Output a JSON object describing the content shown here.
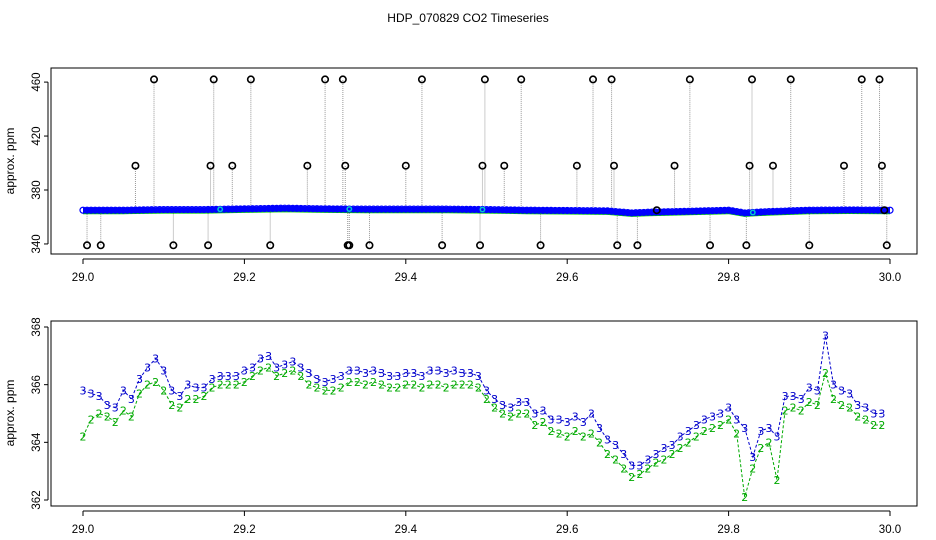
{
  "figure": {
    "title": "HDP_070829  CO2 Timeseries"
  },
  "chart_data": [
    {
      "type": "line",
      "panel": "top",
      "ylabel": "approx. ppm",
      "xlim": [
        29.0,
        30.0
      ],
      "ylim": [
        337,
        466
      ],
      "x_ticks": [
        "29.0",
        "29.2",
        "29.4",
        "29.6",
        "29.8",
        "30.0"
      ],
      "y_ticks": [
        "340",
        "380",
        "420",
        "460"
      ],
      "colors": {
        "series2": "#00cc00",
        "series3": "#0000ff",
        "outlier_marker": "#000000",
        "spike_line": "#999999",
        "highlight": "#00cccc"
      },
      "series": [
        {
          "role": "baseline",
          "x": [
            29.0,
            29.05,
            29.1,
            29.15,
            29.2,
            29.25,
            29.3,
            29.35,
            29.4,
            29.45,
            29.5,
            29.55,
            29.6,
            29.65,
            29.68,
            29.7,
            29.75,
            29.8,
            29.82,
            29.85,
            29.9,
            29.95,
            30.0
          ],
          "y": [
            365,
            365,
            365.5,
            365.5,
            366,
            366.5,
            366,
            365.8,
            365.8,
            365.8,
            365.5,
            365,
            364.8,
            364.5,
            363,
            363.5,
            364.2,
            365,
            363,
            364,
            365,
            365.2,
            365
          ]
        },
        {
          "role": "outliers",
          "x": [
            29.005,
            29.022,
            29.065,
            29.088,
            29.112,
            29.155,
            29.158,
            29.162,
            29.185,
            29.208,
            29.232,
            29.278,
            29.3,
            29.322,
            29.325,
            29.328,
            29.33,
            29.355,
            29.4,
            29.42,
            29.445,
            29.492,
            29.495,
            29.498,
            29.522,
            29.543,
            29.567,
            29.612,
            29.632,
            29.655,
            29.658,
            29.662,
            29.687,
            29.711,
            29.733,
            29.752,
            29.777,
            29.822,
            29.826,
            29.829,
            29.855,
            29.877,
            29.9,
            29.943,
            29.965,
            29.987,
            29.99,
            29.993,
            29.996
          ],
          "y": [
            339,
            339,
            398,
            462,
            339,
            339,
            398,
            462,
            398,
            462,
            339,
            398,
            462,
            462,
            398,
            339,
            339,
            339,
            398,
            462,
            339,
            339,
            398,
            462,
            398,
            462,
            339,
            398,
            462,
            462,
            398,
            339,
            339,
            365,
            398,
            462,
            339,
            339,
            398,
            462,
            398,
            462,
            339,
            398,
            462,
            462,
            398,
            365,
            339
          ]
        }
      ]
    },
    {
      "type": "line",
      "panel": "bottom",
      "ylabel": "approx. ppm",
      "xlim": [
        29.0,
        30.0
      ],
      "ylim": [
        362,
        368
      ],
      "x_ticks": [
        "29.0",
        "29.2",
        "29.4",
        "29.6",
        "29.8",
        "30.0"
      ],
      "y_ticks": [
        "362",
        "364",
        "366",
        "368"
      ],
      "colors": {
        "series2": "#00aa00",
        "series3": "#0000cc"
      },
      "series": [
        {
          "name": "3",
          "x": [
            29.0,
            29.01,
            29.02,
            29.03,
            29.04,
            29.05,
            29.06,
            29.07,
            29.08,
            29.09,
            29.1,
            29.11,
            29.12,
            29.13,
            29.14,
            29.15,
            29.16,
            29.17,
            29.18,
            29.19,
            29.2,
            29.21,
            29.22,
            29.23,
            29.24,
            29.25,
            29.26,
            29.27,
            29.28,
            29.29,
            29.3,
            29.31,
            29.32,
            29.33,
            29.34,
            29.35,
            29.36,
            29.37,
            29.38,
            29.39,
            29.4,
            29.41,
            29.42,
            29.43,
            29.44,
            29.45,
            29.46,
            29.47,
            29.48,
            29.49,
            29.5,
            29.51,
            29.52,
            29.53,
            29.54,
            29.55,
            29.56,
            29.57,
            29.58,
            29.59,
            29.6,
            29.61,
            29.62,
            29.63,
            29.64,
            29.65,
            29.66,
            29.67,
            29.68,
            29.69,
            29.7,
            29.71,
            29.72,
            29.73,
            29.74,
            29.75,
            29.76,
            29.77,
            29.78,
            29.79,
            29.8,
            29.81,
            29.82,
            29.83,
            29.84,
            29.85,
            29.86,
            29.87,
            29.88,
            29.89,
            29.9,
            29.91,
            29.92,
            29.93,
            29.94,
            29.95,
            29.96,
            29.97,
            29.98,
            29.99
          ],
          "y": [
            365.8,
            365.7,
            365.6,
            365.3,
            365.2,
            365.8,
            365.5,
            366.2,
            366.6,
            366.9,
            366.5,
            365.8,
            365.6,
            366.0,
            365.9,
            365.9,
            366.2,
            366.3,
            366.3,
            366.3,
            366.5,
            366.6,
            366.9,
            367.0,
            366.6,
            366.7,
            366.8,
            366.6,
            366.4,
            366.2,
            366.1,
            366.2,
            366.3,
            366.5,
            366.5,
            366.4,
            366.5,
            366.4,
            366.3,
            366.3,
            366.4,
            366.4,
            366.3,
            366.5,
            366.5,
            366.4,
            366.5,
            366.4,
            366.4,
            366.3,
            365.8,
            365.5,
            365.3,
            365.2,
            365.4,
            365.4,
            365.0,
            365.1,
            364.8,
            364.8,
            364.7,
            364.9,
            364.7,
            365.0,
            364.5,
            364.1,
            363.9,
            363.6,
            363.2,
            363.2,
            363.4,
            363.6,
            363.8,
            363.9,
            364.2,
            364.4,
            364.6,
            364.8,
            364.9,
            365.0,
            365.2,
            364.8,
            364.5,
            363.5,
            364.4,
            364.5,
            364.2,
            365.6,
            365.6,
            365.5,
            365.9,
            365.8,
            367.7,
            366.0,
            365.8,
            365.7,
            365.3,
            365.2,
            365.0,
            365.0
          ]
        },
        {
          "name": "2",
          "x": [
            29.0,
            29.01,
            29.02,
            29.03,
            29.04,
            29.05,
            29.06,
            29.07,
            29.08,
            29.09,
            29.1,
            29.11,
            29.12,
            29.13,
            29.14,
            29.15,
            29.16,
            29.17,
            29.18,
            29.19,
            29.2,
            29.21,
            29.22,
            29.23,
            29.24,
            29.25,
            29.26,
            29.27,
            29.28,
            29.29,
            29.3,
            29.31,
            29.32,
            29.33,
            29.34,
            29.35,
            29.36,
            29.37,
            29.38,
            29.39,
            29.4,
            29.41,
            29.42,
            29.43,
            29.44,
            29.45,
            29.46,
            29.47,
            29.48,
            29.49,
            29.5,
            29.51,
            29.52,
            29.53,
            29.54,
            29.55,
            29.56,
            29.57,
            29.58,
            29.59,
            29.6,
            29.61,
            29.62,
            29.63,
            29.64,
            29.65,
            29.66,
            29.67,
            29.68,
            29.69,
            29.7,
            29.71,
            29.72,
            29.73,
            29.74,
            29.75,
            29.76,
            29.77,
            29.78,
            29.79,
            29.8,
            29.81,
            29.82,
            29.83,
            29.84,
            29.85,
            29.86,
            29.87,
            29.88,
            29.89,
            29.9,
            29.91,
            29.92,
            29.93,
            29.94,
            29.95,
            29.96,
            29.97,
            29.98,
            29.99
          ],
          "y": [
            364.2,
            364.8,
            365.0,
            364.9,
            364.7,
            365.1,
            364.9,
            365.7,
            366.0,
            366.1,
            365.8,
            365.3,
            365.2,
            365.5,
            365.5,
            365.6,
            365.9,
            366.0,
            366.0,
            366.0,
            366.1,
            366.3,
            366.5,
            366.6,
            366.3,
            366.4,
            366.5,
            366.3,
            366.0,
            365.9,
            365.8,
            365.8,
            365.9,
            366.1,
            366.1,
            366.0,
            366.1,
            366.0,
            365.9,
            365.9,
            366.0,
            366.0,
            365.9,
            366.0,
            366.0,
            365.9,
            366.0,
            366.0,
            366.0,
            365.9,
            365.5,
            365.2,
            365.0,
            364.9,
            365.0,
            365.0,
            364.6,
            364.7,
            364.4,
            364.3,
            364.2,
            364.4,
            364.2,
            364.3,
            364.0,
            363.6,
            363.4,
            363.1,
            362.8,
            362.9,
            363.1,
            363.3,
            363.4,
            363.6,
            363.8,
            364.0,
            364.2,
            364.4,
            364.5,
            364.6,
            364.8,
            364.3,
            362.1,
            363.1,
            363.8,
            364.0,
            362.7,
            365.1,
            365.2,
            365.1,
            365.4,
            365.3,
            366.4,
            365.5,
            365.3,
            365.2,
            364.9,
            364.8,
            364.6,
            364.6
          ]
        }
      ]
    }
  ]
}
